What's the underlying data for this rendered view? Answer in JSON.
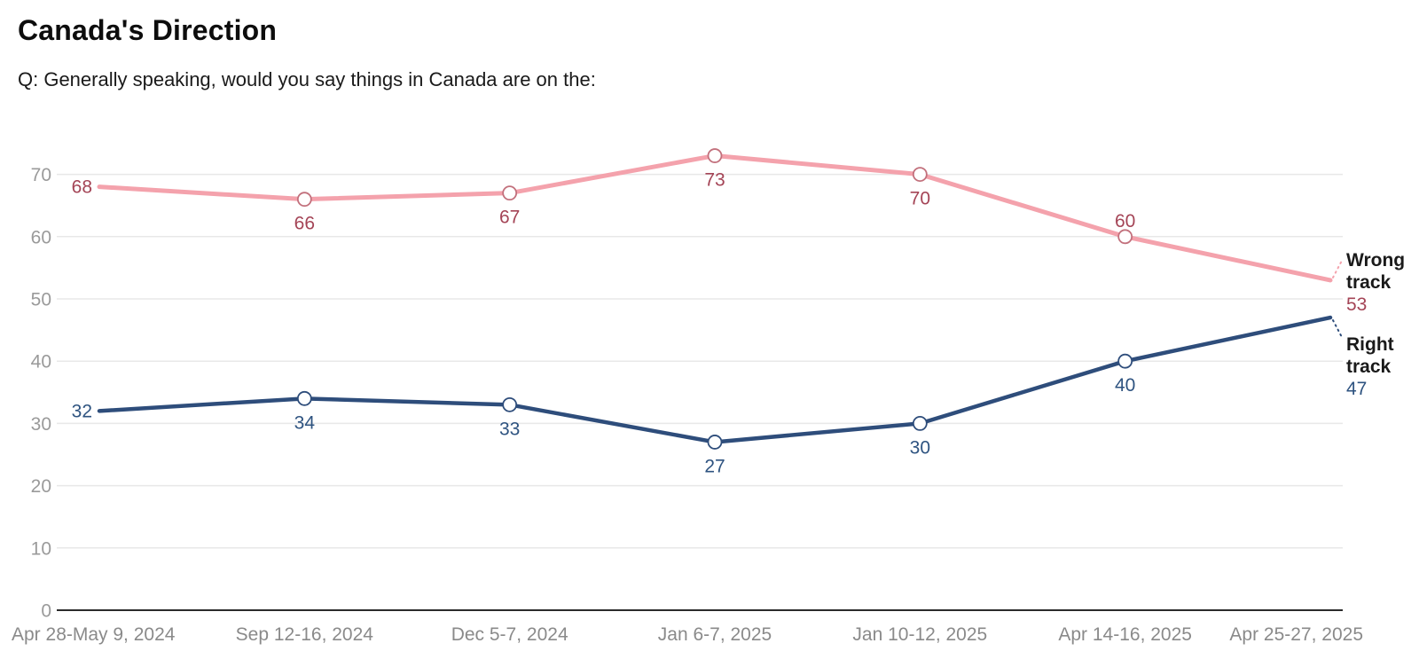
{
  "chart_data": {
    "type": "line",
    "title": "Canada's Direction",
    "subtitle": "Q: Generally speaking, would you say things in Canada are on the:",
    "categories": [
      "Apr 28-May 9, 2024",
      "Sep 12-16, 2024",
      "Dec 5-7, 2024",
      "Jan 6-7, 2025",
      "Jan 10-12, 2025",
      "Apr 14-16, 2025",
      "Apr 25-27, 2025"
    ],
    "series": [
      {
        "name": "Wrong track",
        "values": [
          68,
          66,
          67,
          73,
          70,
          60,
          53
        ],
        "line_color": "#f4a2ac",
        "marker_stroke": "#c2707c",
        "label_color": "#a44456",
        "label_positions": [
          "start",
          "below",
          "below",
          "below",
          "below",
          "above",
          "legend"
        ]
      },
      {
        "name": "Right track",
        "values": [
          32,
          34,
          33,
          27,
          30,
          40,
          47
        ],
        "line_color": "#2e4d7b",
        "marker_stroke": "#2e4d7b",
        "label_color": "#2e5380",
        "label_positions": [
          "start",
          "below",
          "below",
          "below",
          "below",
          "below",
          "legend"
        ]
      }
    ],
    "yaxis": {
      "min": 0,
      "max": 75,
      "ticks": [
        0,
        10,
        20,
        30,
        40,
        50,
        60,
        70
      ]
    },
    "grid": true,
    "legend_position": "right",
    "colors": {
      "axis_line": "#2b2b2b",
      "gridline": "#e8e8e8",
      "tick_label": "#9a9a9a",
      "x_label": "#8a8a8a",
      "legend_name": "#1a1a1a",
      "marker_fill": "#ffffff"
    }
  }
}
